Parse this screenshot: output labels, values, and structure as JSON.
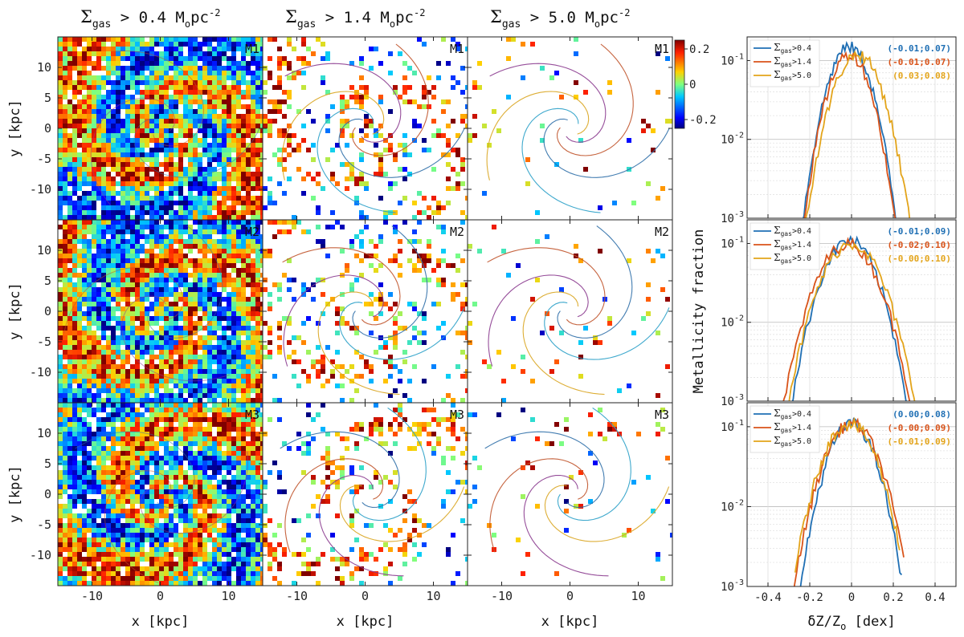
{
  "chart_data": {
    "type": "panel-grid",
    "column_titles": [
      {
        "sym": "Σ",
        "sub": "gas",
        "rel": " > 0.4 M",
        "sub2": "o",
        "unit": "pc",
        "exp": "-2"
      },
      {
        "sym": "Σ",
        "sub": "gas",
        "rel": " > 1.4 M",
        "sub2": "o",
        "unit": "pc",
        "exp": "-2"
      },
      {
        "sym": "Σ",
        "sub": "gas",
        "rel": " > 5.0 M",
        "sub2": "o",
        "unit": "pc",
        "exp": "-2"
      }
    ],
    "row_labels": [
      "M1",
      "M2",
      "M3"
    ],
    "map_xlabel": "x [kpc]",
    "map_ylabel": "y [kpc]",
    "map_axis_range": [
      -15,
      15
    ],
    "map_xticks": [
      {
        "v": -10,
        "t": "-10"
      },
      {
        "v": 0,
        "t": "0"
      },
      {
        "v": 10,
        "t": "10"
      }
    ],
    "map_yticks": [
      {
        "v": 10,
        "t": "10"
      },
      {
        "v": 5,
        "t": "5"
      },
      {
        "v": 0,
        "t": "0"
      },
      {
        "v": -5,
        "t": "-5"
      },
      {
        "v": -10,
        "t": "-10"
      }
    ],
    "colorbar": {
      "range": [
        -0.25,
        0.25
      ],
      "ticks": [
        {
          "v": 0.2,
          "t": "0.2"
        },
        {
          "v": 0,
          "t": "0"
        },
        {
          "v": -0.2,
          "t": "-0.2"
        }
      ]
    },
    "hist_ylabel": "Metallicity fraction",
    "hist_xlabel": {
      "main": "δZ/Z",
      "sub": "o",
      "rest": " [dex]"
    },
    "hist_xrange": [
      -0.5,
      0.5
    ],
    "hist_yrange_log10": [
      -3,
      -0.7
    ],
    "hist_xticks": [
      {
        "v": -0.4,
        "t": "-0.4"
      },
      {
        "v": -0.2,
        "t": "-0.2"
      },
      {
        "v": 0,
        "t": "0"
      },
      {
        "v": 0.2,
        "t": "0.2"
      },
      {
        "v": 0.4,
        "t": "0.4"
      }
    ],
    "hist_yticks": [
      {
        "v": -3,
        "base": "10",
        "exp": "-3"
      },
      {
        "v": -2,
        "base": "10",
        "exp": "-2"
      },
      {
        "v": -1,
        "base": "10",
        "exp": "-1"
      }
    ],
    "legend_entries": [
      {
        "sym": "Σ",
        "sub": "gas",
        "val": ">0.4"
      },
      {
        "sym": "Σ",
        "sub": "gas",
        "val": ">1.4"
      },
      {
        "sym": "Σ",
        "sub": "gas",
        "val": ">5.0"
      }
    ],
    "series_colors": [
      "#1f6fb4",
      "#d95319",
      "#e3a41a"
    ],
    "histograms": [
      {
        "model": "M1",
        "stats": [
          "(-0.01;0.07)",
          "(-0.01;0.07)",
          "(0.03;0.08)"
        ],
        "series": [
          {
            "name": "Σgas>0.4",
            "peak": 0.15,
            "mu": -0.01,
            "sigma": 0.07,
            "range": [
              -0.27,
              0.24
            ]
          },
          {
            "name": "Σgas>1.4",
            "peak": 0.12,
            "mu": -0.01,
            "sigma": 0.07,
            "range": [
              -0.27,
              0.27
            ]
          },
          {
            "name": "Σgas>5.0",
            "peak": 0.12,
            "mu": 0.03,
            "sigma": 0.08,
            "range": [
              -0.24,
              0.29
            ]
          }
        ]
      },
      {
        "model": "M2",
        "stats": [
          "(-0.01;0.09)",
          "(-0.02;0.10)",
          "(-0.00;0.10)"
        ],
        "series": [
          {
            "name": "Σgas>0.4",
            "peak": 0.11,
            "mu": -0.01,
            "sigma": 0.09,
            "range": [
              -0.33,
              0.28
            ]
          },
          {
            "name": "Σgas>1.4",
            "peak": 0.1,
            "mu": -0.02,
            "sigma": 0.1,
            "range": [
              -0.38,
              0.3
            ]
          },
          {
            "name": "Σgas>5.0",
            "peak": 0.1,
            "mu": 0.0,
            "sigma": 0.1,
            "range": [
              -0.3,
              0.33
            ]
          }
        ]
      },
      {
        "model": "M3",
        "stats": [
          "(0.00;0.08)",
          "(-0.00;0.09)",
          "(-0.01;0.09)"
        ],
        "series": [
          {
            "name": "Σgas>0.4",
            "peak": 0.11,
            "mu": 0.0,
            "sigma": 0.08,
            "range": [
              -0.27,
              0.24
            ]
          },
          {
            "name": "Σgas>1.4",
            "peak": 0.11,
            "mu": 0.0,
            "sigma": 0.09,
            "range": [
              -0.28,
              0.25
            ]
          },
          {
            "name": "Σgas>5.0",
            "peak": 0.11,
            "mu": -0.01,
            "sigma": 0.09,
            "range": [
              -0.27,
              0.23
            ]
          }
        ]
      }
    ]
  }
}
